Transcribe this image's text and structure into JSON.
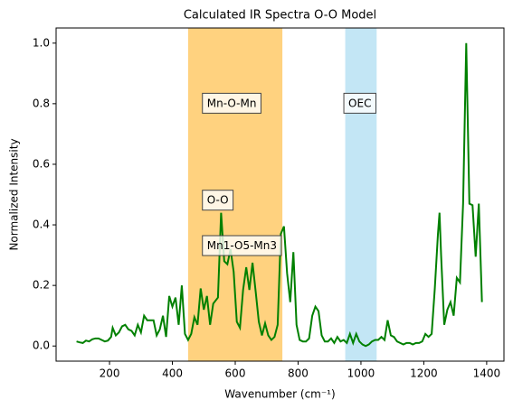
{
  "chart_data": {
    "type": "line",
    "title": "Calculated IR Spectra O-O Model",
    "xlabel": "Wavenumber (cm⁻¹)",
    "ylabel": "Normalized Intensity",
    "xlim": [
      30,
      1455
    ],
    "ylim": [
      -0.05,
      1.05
    ],
    "xticks": [
      200,
      400,
      600,
      800,
      1000,
      1200,
      1400
    ],
    "yticks": [
      {
        "value": 0,
        "label": "0.0"
      },
      0.2,
      0.4,
      0.6,
      0.8,
      {
        "value": 1,
        "label": "1.0"
      }
    ],
    "bands": [
      {
        "x": [
          450,
          750
        ],
        "color": "#ffa500"
      },
      {
        "x": [
          950,
          1050
        ],
        "color": "#87ceeb"
      }
    ],
    "annotations": [
      {
        "text": "Mn-O-Mn",
        "x": 510,
        "y": 0.8,
        "color": "#ffa500"
      },
      {
        "text": "OEC",
        "x": 960,
        "y": 0.8,
        "color": "#0000ff"
      },
      {
        "text": "O-O",
        "x": 510,
        "y": 0.48,
        "color": "#000000"
      },
      {
        "text": "Mn1-O5-Mn3",
        "x": 510,
        "y": 0.33,
        "color": "#000000"
      }
    ],
    "x": [
      95,
      105,
      115,
      125,
      135,
      145,
      155,
      165,
      175,
      185,
      195,
      205,
      210,
      220,
      230,
      240,
      250,
      260,
      270,
      280,
      290,
      300,
      310,
      320,
      330,
      340,
      350,
      360,
      370,
      380,
      390,
      400,
      410,
      420,
      430,
      440,
      450,
      460,
      470,
      480,
      490,
      500,
      510,
      520,
      530,
      545,
      555,
      565,
      575,
      585,
      595,
      605,
      615,
      625,
      635,
      645,
      655,
      665,
      675,
      685,
      695,
      705,
      715,
      725,
      735,
      745,
      755,
      765,
      775,
      785,
      795,
      805,
      815,
      825,
      835,
      845,
      855,
      865,
      875,
      885,
      895,
      905,
      915,
      925,
      935,
      945,
      955,
      965,
      975,
      985,
      995,
      1005,
      1015,
      1025,
      1035,
      1045,
      1055,
      1065,
      1075,
      1085,
      1095,
      1105,
      1115,
      1125,
      1135,
      1145,
      1155,
      1165,
      1175,
      1185,
      1195,
      1205,
      1215,
      1225,
      1235,
      1245,
      1250,
      1255,
      1265,
      1275,
      1285,
      1295,
      1305,
      1315,
      1325,
      1335,
      1345,
      1355,
      1365,
      1375,
      1385
    ],
    "series": [
      {
        "color": "#008000",
        "values": [
          0.015,
          0.012,
          0.01,
          0.018,
          0.015,
          0.022,
          0.025,
          0.025,
          0.02,
          0.015,
          0.018,
          0.03,
          0.06,
          0.035,
          0.045,
          0.065,
          0.07,
          0.055,
          0.05,
          0.035,
          0.07,
          0.045,
          0.1,
          0.085,
          0.085,
          0.085,
          0.035,
          0.055,
          0.1,
          0.03,
          0.165,
          0.13,
          0.16,
          0.07,
          0.2,
          0.04,
          0.02,
          0.04,
          0.095,
          0.07,
          0.19,
          0.12,
          0.165,
          0.07,
          0.14,
          0.16,
          0.44,
          0.28,
          0.27,
          0.32,
          0.245,
          0.08,
          0.06,
          0.185,
          0.26,
          0.185,
          0.275,
          0.18,
          0.08,
          0.035,
          0.075,
          0.035,
          0.02,
          0.03,
          0.07,
          0.37,
          0.395,
          0.24,
          0.145,
          0.31,
          0.07,
          0.02,
          0.015,
          0.015,
          0.025,
          0.1,
          0.13,
          0.115,
          0.035,
          0.015,
          0.015,
          0.025,
          0.01,
          0.03,
          0.015,
          0.02,
          0.01,
          0.04,
          0.01,
          0.04,
          0.015,
          0.005,
          0.0,
          0.005,
          0.015,
          0.02,
          0.02,
          0.03,
          0.02,
          0.085,
          0.035,
          0.03,
          0.015,
          0.01,
          0.005,
          0.01,
          0.01,
          0.005,
          0.01,
          0.01,
          0.015,
          0.04,
          0.03,
          0.04,
          0.19,
          0.37,
          0.44,
          0.3,
          0.07,
          0.12,
          0.145,
          0.1,
          0.225,
          0.21,
          0.47,
          1.0,
          0.47,
          0.465,
          0.295,
          0.47,
          0.145
        ]
      }
    ]
  }
}
